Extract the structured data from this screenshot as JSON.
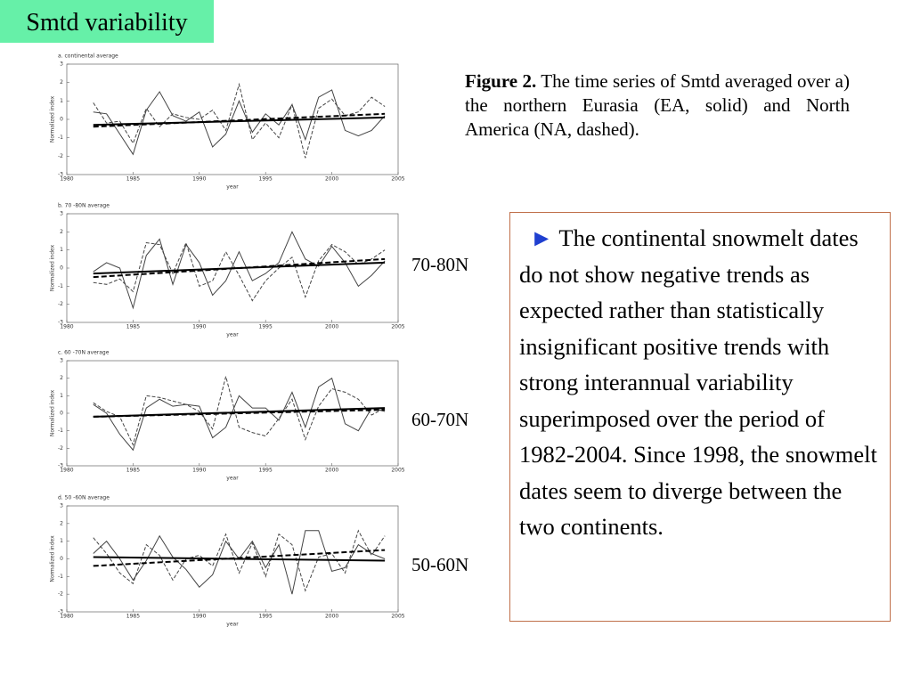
{
  "title": "Smtd variability",
  "caption": {
    "label": "Figure 2.",
    "text": "The time series of Smtd averaged over a) the northern Eurasia (EA, solid) and North America (NA, dashed)."
  },
  "region_labels": [
    "70-80N",
    "60-70N",
    "50-60N"
  ],
  "note": {
    "bullet": "►",
    "text": "The continental snowmelt dates do not show  negative trends as expected rather than statistically insignificant positive trends with strong interannual variability superimposed over the period of 1982-2004. Since 1998, the snowmelt dates seem to diverge between the two continents."
  },
  "chart_data": [
    {
      "type": "line",
      "title": "a.  continental average",
      "x_label": "year",
      "y_label": "Normalized index",
      "x": [
        1982,
        1983,
        1984,
        1985,
        1986,
        1987,
        1988,
        1989,
        1990,
        1991,
        1992,
        1993,
        1994,
        1995,
        1996,
        1997,
        1998,
        1999,
        2000,
        2001,
        2002,
        2003,
        2004
      ],
      "series": [
        {
          "color": "#444444",
          "dash": false,
          "values": [
            0.4,
            0.3,
            -0.8,
            -1.9,
            0.5,
            1.5,
            0.2,
            -0.1,
            0.4,
            -1.5,
            -0.8,
            1.0,
            -0.7,
            0.3,
            -0.3,
            0.8,
            -1.1,
            1.2,
            1.6,
            -0.6,
            -0.9,
            -0.6,
            0.2
          ]
        },
        {
          "color": "#444444",
          "dash": true,
          "values": [
            0.9,
            -0.2,
            -0.1,
            -1.3,
            0.6,
            -0.4,
            0.3,
            0.1,
            0.0,
            0.5,
            -0.6,
            1.9,
            -1.1,
            -0.2,
            -1.0,
            0.8,
            -2.1,
            0.6,
            1.1,
            0.2,
            0.4,
            1.2,
            0.7
          ]
        }
      ],
      "trends": [
        {
          "color": "#000000",
          "dash": false,
          "x": [
            1982,
            2004
          ],
          "values": [
            -0.3,
            0.1
          ]
        },
        {
          "color": "#000000",
          "dash": true,
          "x": [
            1982,
            2004
          ],
          "values": [
            -0.4,
            0.3
          ]
        }
      ],
      "xlim": [
        1980,
        2005
      ],
      "xticks": [
        1980,
        1985,
        1990,
        1995,
        2000,
        2005
      ],
      "ylim": [
        -3,
        3
      ],
      "yticks": [
        -3,
        -2,
        -1,
        0,
        1,
        2,
        3
      ]
    },
    {
      "type": "line",
      "title": "b.  70 -80N average",
      "x_label": "year",
      "y_label": "Normalized index",
      "x": [
        1982,
        1983,
        1984,
        1985,
        1986,
        1987,
        1988,
        1989,
        1990,
        1991,
        1992,
        1993,
        1994,
        1995,
        1996,
        1997,
        1998,
        1999,
        2000,
        2001,
        2002,
        2003,
        2004
      ],
      "series": [
        {
          "color": "#444444",
          "dash": false,
          "values": [
            -0.2,
            0.3,
            0.0,
            -2.2,
            0.7,
            1.6,
            -0.9,
            1.3,
            0.3,
            -1.5,
            -0.7,
            0.9,
            -0.7,
            -0.3,
            0.3,
            2.0,
            0.5,
            0.1,
            1.2,
            0.3,
            -1.0,
            -0.4,
            0.4
          ]
        },
        {
          "color": "#444444",
          "dash": true,
          "values": [
            -0.8,
            -0.9,
            -0.6,
            -1.3,
            1.4,
            1.3,
            -0.3,
            1.4,
            -1.0,
            -0.7,
            0.9,
            -0.4,
            -1.8,
            -0.7,
            0.0,
            0.6,
            -1.6,
            0.4,
            1.3,
            0.9,
            0.2,
            0.5,
            1.0
          ]
        }
      ],
      "trends": [
        {
          "color": "#000000",
          "dash": false,
          "x": [
            1982,
            2004
          ],
          "values": [
            -0.3,
            0.3
          ]
        },
        {
          "color": "#000000",
          "dash": true,
          "x": [
            1982,
            2004
          ],
          "values": [
            -0.5,
            0.5
          ]
        }
      ],
      "xlim": [
        1980,
        2005
      ],
      "xticks": [
        1980,
        1985,
        1990,
        1995,
        2000,
        2005
      ],
      "ylim": [
        -3,
        3
      ],
      "yticks": [
        -3,
        -2,
        -1,
        0,
        1,
        2,
        3
      ]
    },
    {
      "type": "line",
      "title": "c.  60 -70N average",
      "x_label": "year",
      "y_label": "Normalized index",
      "x": [
        1982,
        1983,
        1984,
        1985,
        1986,
        1987,
        1988,
        1989,
        1990,
        1991,
        1992,
        1993,
        1994,
        1995,
        1996,
        1997,
        1998,
        1999,
        2000,
        2001,
        2002,
        2003,
        2004
      ],
      "series": [
        {
          "color": "#444444",
          "dash": false,
          "values": [
            0.5,
            0.0,
            -1.2,
            -2.1,
            0.3,
            0.8,
            0.4,
            0.5,
            0.4,
            -1.4,
            -0.8,
            1.0,
            0.3,
            0.3,
            -0.4,
            1.2,
            -0.8,
            1.5,
            2.0,
            -0.6,
            -1.0,
            0.3,
            0.1
          ]
        },
        {
          "color": "#444444",
          "dash": true,
          "values": [
            0.6,
            0.1,
            -0.2,
            -1.8,
            1.0,
            0.9,
            0.7,
            0.5,
            0.1,
            -0.9,
            2.1,
            -0.8,
            -1.1,
            -1.3,
            -0.3,
            0.8,
            -1.5,
            0.4,
            1.4,
            1.2,
            0.8,
            -0.1,
            0.3
          ]
        }
      ],
      "trends": [
        {
          "color": "#000000",
          "dash": false,
          "x": [
            1982,
            2004
          ],
          "values": [
            -0.2,
            0.3
          ]
        },
        {
          "color": "#000000",
          "dash": true,
          "x": [
            1982,
            2004
          ],
          "values": [
            -0.2,
            0.2
          ]
        }
      ],
      "xlim": [
        1980,
        2005
      ],
      "xticks": [
        1980,
        1985,
        1990,
        1995,
        2000,
        2005
      ],
      "ylim": [
        -3,
        3
      ],
      "yticks": [
        -3,
        -2,
        -1,
        0,
        1,
        2,
        3
      ]
    },
    {
      "type": "line",
      "title": "d.  50 -60N average",
      "x_label": "year",
      "y_label": "Normalized index",
      "x": [
        1982,
        1983,
        1984,
        1985,
        1986,
        1987,
        1988,
        1989,
        1990,
        1991,
        1992,
        1993,
        1994,
        1995,
        1996,
        1997,
        1998,
        1999,
        2000,
        2001,
        2002,
        2003,
        2004
      ],
      "series": [
        {
          "color": "#444444",
          "dash": false,
          "values": [
            0.3,
            1.0,
            0.0,
            -1.2,
            -0.1,
            1.3,
            0.1,
            -0.6,
            -1.6,
            -0.9,
            1.0,
            0.0,
            1.0,
            -0.5,
            0.8,
            -2.0,
            1.6,
            1.6,
            -0.7,
            -0.5,
            0.8,
            0.3,
            0.0
          ]
        },
        {
          "color": "#444444",
          "dash": true,
          "values": [
            1.2,
            0.3,
            -0.8,
            -1.4,
            0.8,
            0.2,
            -1.2,
            0.0,
            0.2,
            -0.4,
            1.4,
            -0.8,
            0.9,
            -1.0,
            1.4,
            0.8,
            -1.8,
            0.1,
            0.3,
            -0.8,
            1.6,
            0.2,
            1.3
          ]
        }
      ],
      "trends": [
        {
          "color": "#000000",
          "dash": false,
          "x": [
            1982,
            2004
          ],
          "values": [
            0.1,
            -0.1
          ]
        },
        {
          "color": "#000000",
          "dash": true,
          "x": [
            1982,
            2004
          ],
          "values": [
            -0.4,
            0.5
          ]
        }
      ],
      "xlim": [
        1980,
        2005
      ],
      "xticks": [
        1980,
        1985,
        1990,
        1995,
        2000,
        2005
      ],
      "ylim": [
        -3,
        3
      ],
      "yticks": [
        -3,
        -2,
        -1,
        0,
        1,
        2,
        3
      ]
    }
  ]
}
